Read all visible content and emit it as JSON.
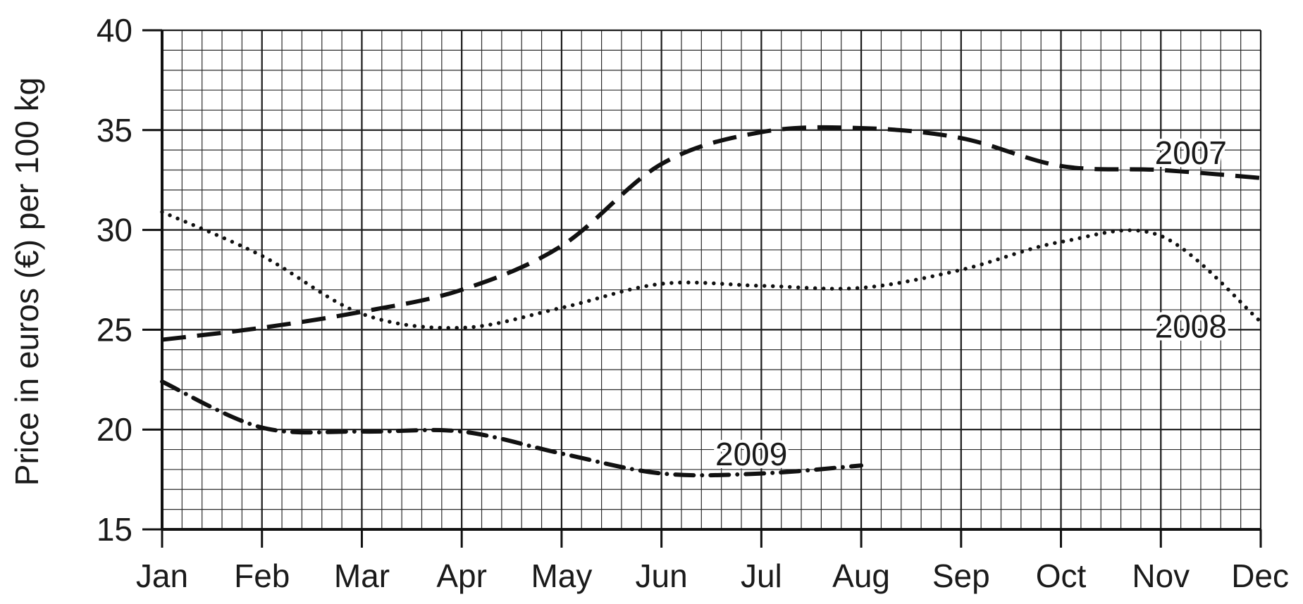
{
  "chart_data": {
    "type": "line",
    "ylabel": "Price in euros (€) per 100 kg",
    "xlabel": "",
    "categories": [
      "Jan",
      "Feb",
      "Mar",
      "Apr",
      "May",
      "Jun",
      "Jul",
      "Aug",
      "Sep",
      "Oct",
      "Nov",
      "Dec"
    ],
    "ylim": [
      15,
      40
    ],
    "yticks": [
      "15",
      "20",
      "25",
      "30",
      "35",
      "40"
    ],
    "grid": true,
    "series": [
      {
        "name": "2007",
        "style": "dashed",
        "x": [
          "Jan",
          "Feb",
          "Mar",
          "Apr",
          "May",
          "Jun",
          "Jul",
          "Aug",
          "Sep",
          "Oct",
          "Nov",
          "Dec"
        ],
        "values": [
          24.5,
          25.1,
          25.9,
          27.0,
          29.2,
          33.3,
          34.9,
          35.1,
          34.6,
          33.2,
          33.0,
          32.6
        ]
      },
      {
        "name": "2008",
        "style": "dotted",
        "x": [
          "Jan",
          "Feb",
          "Mar",
          "Apr",
          "May",
          "Jun",
          "Jul",
          "Aug",
          "Sep",
          "Oct",
          "Nov",
          "Dec"
        ],
        "values": [
          30.9,
          28.7,
          25.8,
          25.1,
          26.1,
          27.3,
          27.2,
          27.1,
          28.0,
          29.4,
          29.7,
          25.4
        ]
      },
      {
        "name": "2009",
        "style": "dash-dot",
        "x": [
          "Jan",
          "Feb",
          "Mar",
          "Apr",
          "May",
          "Jun",
          "Jul",
          "Aug"
        ],
        "values": [
          22.4,
          20.1,
          19.9,
          19.9,
          18.8,
          17.8,
          17.8,
          18.2
        ]
      }
    ]
  }
}
